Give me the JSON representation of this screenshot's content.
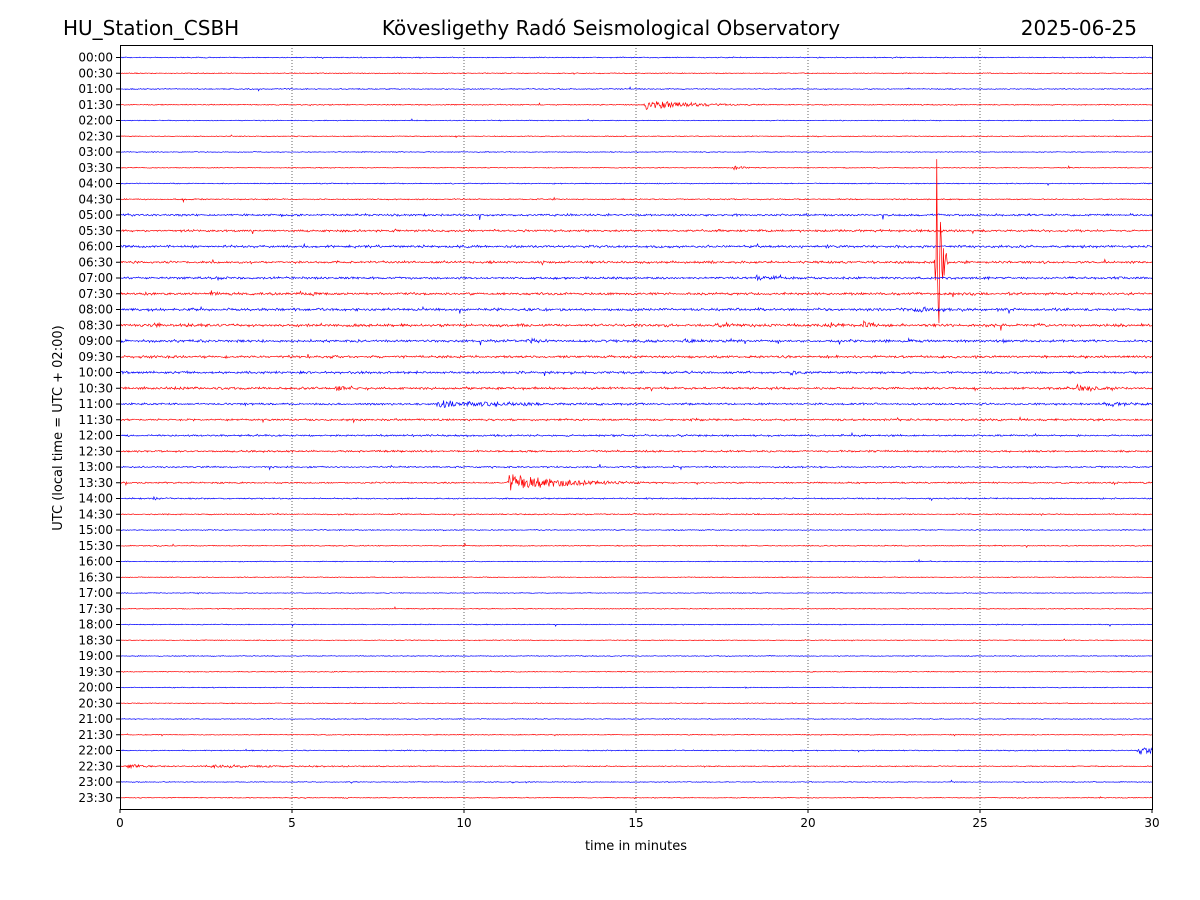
{
  "header": {
    "station": "HU_Station_CSBH",
    "observatory": "Kövesligethy Radó Seismological Observatory",
    "date": "2025-06-25"
  },
  "chart_data": {
    "type": "line",
    "title": "Kövesligethy Radó Seismological Observatory",
    "xlabel": "time in minutes",
    "ylabel": "UTC (local time = UTC + 02:00)",
    "xlim": [
      0,
      30
    ],
    "x_ticks": [
      0,
      5,
      10,
      15,
      20,
      25,
      30
    ],
    "grid": "vertical dotted lines at every 5 minutes",
    "row_labels": [
      "00:00",
      "00:30",
      "01:00",
      "01:30",
      "02:00",
      "02:30",
      "03:00",
      "03:30",
      "04:00",
      "04:30",
      "05:00",
      "05:30",
      "06:00",
      "06:30",
      "07:00",
      "07:30",
      "08:00",
      "08:30",
      "09:00",
      "09:30",
      "10:00",
      "10:30",
      "11:00",
      "11:30",
      "12:00",
      "12:30",
      "13:00",
      "13:30",
      "14:00",
      "14:30",
      "15:00",
      "15:30",
      "16:00",
      "16:30",
      "17:00",
      "17:30",
      "18:00",
      "18:30",
      "19:00",
      "19:30",
      "20:00",
      "20:30",
      "21:00",
      "21:30",
      "22:00",
      "22:30",
      "23:00",
      "23:30"
    ],
    "colors": {
      "even_rows": "#0000ff",
      "odd_rows": "#ff0000",
      "grid": "#000000"
    },
    "row_noise": [
      0.6,
      0.5,
      0.6,
      0.6,
      0.5,
      0.5,
      0.5,
      0.5,
      0.6,
      0.7,
      1.2,
      1.3,
      1.5,
      1.4,
      1.3,
      1.4,
      1.5,
      1.6,
      1.5,
      1.4,
      1.4,
      1.4,
      1.2,
      1.2,
      1.1,
      1.1,
      0.9,
      0.9,
      0.8,
      0.7,
      0.6,
      0.6,
      0.5,
      0.5,
      0.5,
      0.5,
      0.5,
      0.5,
      0.5,
      0.5,
      0.5,
      0.5,
      0.5,
      0.5,
      0.6,
      0.6,
      0.5,
      0.5
    ],
    "events": [
      {
        "row": 3,
        "t": 15.25,
        "amp": 6,
        "dur": 1.2
      },
      {
        "row": 7,
        "t": 17.85,
        "amp": 2.5,
        "dur": 0.3
      },
      {
        "row": 13,
        "t": 23.72,
        "amp": 130,
        "dur": 0.12
      },
      {
        "row": 14,
        "t": 2.8,
        "amp": 3,
        "dur": 0.2
      },
      {
        "row": 14,
        "t": 18.4,
        "amp": 3,
        "dur": 0.6
      },
      {
        "row": 15,
        "t": 2.6,
        "amp": 3,
        "dur": 0.3
      },
      {
        "row": 15,
        "t": 5.2,
        "amp": 2.5,
        "dur": 0.5
      },
      {
        "row": 16,
        "t": 23.1,
        "amp": 3,
        "dur": 0.9
      },
      {
        "row": 17,
        "t": 0.9,
        "amp": 3,
        "dur": 0.6
      },
      {
        "row": 17,
        "t": 17.3,
        "amp": 3,
        "dur": 0.6
      },
      {
        "row": 17,
        "t": 20.6,
        "amp": 3,
        "dur": 0.3
      },
      {
        "row": 17,
        "t": 21.6,
        "amp": 3.5,
        "dur": 0.4
      },
      {
        "row": 18,
        "t": 11.8,
        "amp": 2.5,
        "dur": 0.5
      },
      {
        "row": 18,
        "t": 16.3,
        "amp": 2.5,
        "dur": 0.6
      },
      {
        "row": 18,
        "t": 22.9,
        "amp": 3,
        "dur": 0.3
      },
      {
        "row": 20,
        "t": 19.5,
        "amp": 2.5,
        "dur": 0.3
      },
      {
        "row": 21,
        "t": 6.3,
        "amp": 3,
        "dur": 0.6
      },
      {
        "row": 21,
        "t": 27.8,
        "amp": 3.5,
        "dur": 0.5
      },
      {
        "row": 22,
        "t": 9.2,
        "amp": 4,
        "dur": 1.8
      },
      {
        "row": 22,
        "t": 28.6,
        "amp": 2,
        "dur": 1.0
      },
      {
        "row": 27,
        "t": 11.3,
        "amp": 9,
        "dur": 1.5
      },
      {
        "row": 28,
        "t": 0.9,
        "amp": 2,
        "dur": 0.4
      },
      {
        "row": 44,
        "t": 29.6,
        "amp": 5,
        "dur": 0.6
      },
      {
        "row": 45,
        "t": 0.2,
        "amp": 3,
        "dur": 0.5
      },
      {
        "row": 45,
        "t": 2.5,
        "amp": 1.5,
        "dur": 2.5
      }
    ]
  }
}
